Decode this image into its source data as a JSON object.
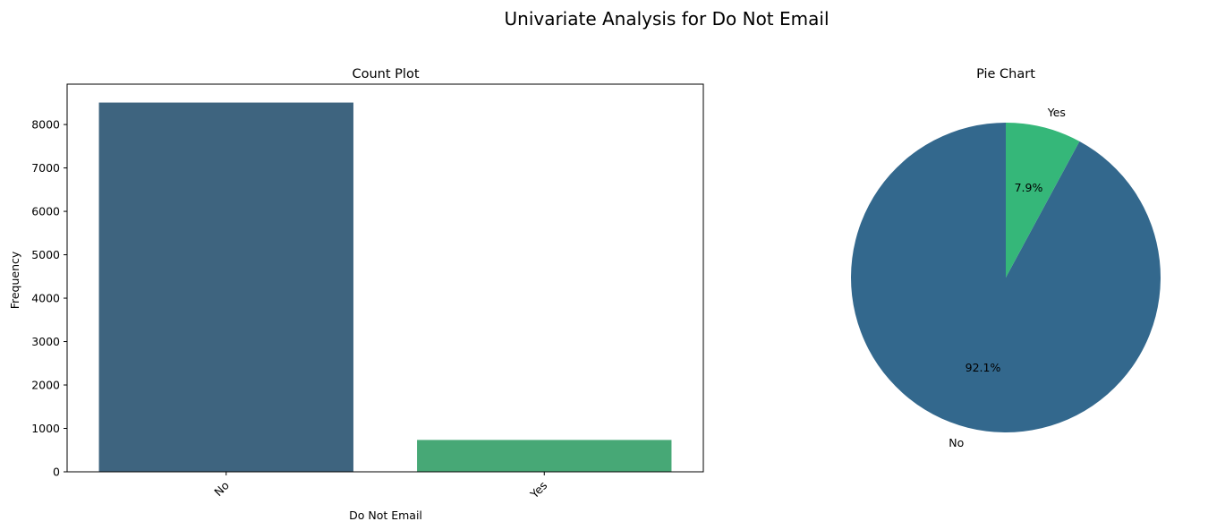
{
  "figure_title": "Univariate Analysis for Do Not Email",
  "chart_data": [
    {
      "type": "bar",
      "title": "Count Plot",
      "xlabel": "Do Not Email",
      "ylabel": "Frequency",
      "categories": [
        "No",
        "Yes"
      ],
      "values": [
        8506,
        734
      ],
      "colors": [
        "#3e647f",
        "#47a876"
      ],
      "ylim": [
        0,
        8930
      ],
      "yticks": [
        0,
        1000,
        2000,
        3000,
        4000,
        5000,
        6000,
        7000,
        8000
      ],
      "ytick_labels": [
        "0",
        "1000",
        "2000",
        "3000",
        "4000",
        "5000",
        "6000",
        "7000",
        "8000"
      ],
      "xtick_rotation": 45,
      "grid": false,
      "legend": "none"
    },
    {
      "type": "pie",
      "title": "Pie Chart",
      "labels": [
        "No",
        "Yes"
      ],
      "values": [
        92.1,
        7.9
      ],
      "pct_labels": [
        "92.1%",
        "7.9%"
      ],
      "colors": [
        "#33688d",
        "#35b779"
      ],
      "start_angle": 90,
      "legend": "none"
    }
  ]
}
